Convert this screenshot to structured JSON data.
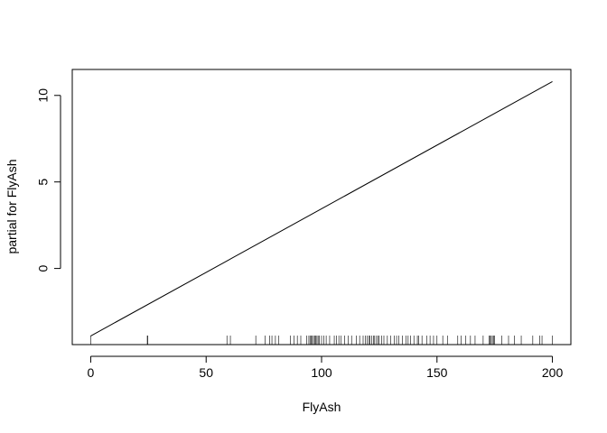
{
  "chart_data": {
    "type": "line",
    "title": "",
    "xlabel": "FlyAsh",
    "ylabel": "partial for FlyAsh",
    "xlim": [
      -8,
      208
    ],
    "ylim": [
      -4.4,
      11.5
    ],
    "x_ticks": [
      0,
      50,
      100,
      150,
      200
    ],
    "y_ticks": [
      0,
      5,
      10
    ],
    "grid": false,
    "legend": "none",
    "series": [
      {
        "x": [
          0,
          200
        ],
        "y": [
          -3.9,
          10.8
        ]
      }
    ],
    "rug": [
      0,
      24.5,
      24.7,
      59.0,
      60.5,
      71.5,
      75.5,
      77.5,
      78.5,
      80.0,
      81.5,
      86.5,
      88.0,
      89.5,
      91.0,
      93.5,
      94.5,
      95.0,
      95.5,
      96.0,
      96.5,
      97.0,
      97.5,
      98.0,
      98.5,
      99.0,
      100.0,
      101.0,
      102.0,
      103.5,
      105.5,
      106.5,
      107.5,
      108.5,
      110.0,
      111.5,
      113.0,
      115.0,
      116.5,
      118.0,
      119.0,
      119.8,
      120.5,
      121.0,
      121.8,
      122.5,
      123.0,
      123.8,
      124.5,
      125.0,
      126.0,
      127.0,
      128.5,
      130.0,
      131.5,
      132.5,
      133.5,
      135.0,
      136.5,
      137.5,
      138.5,
      140.0,
      141.5,
      142.0,
      143.5,
      145.5,
      147.0,
      148.5,
      150.0,
      152.5,
      154.5,
      159.0,
      160.5,
      162.5,
      164.5,
      166.5,
      170.0,
      172.5,
      173.0,
      173.5,
      174.0,
      174.5,
      175.0,
      178.0,
      181.0,
      183.5,
      186.5,
      191.5,
      194.5,
      195.5,
      200.0
    ]
  }
}
